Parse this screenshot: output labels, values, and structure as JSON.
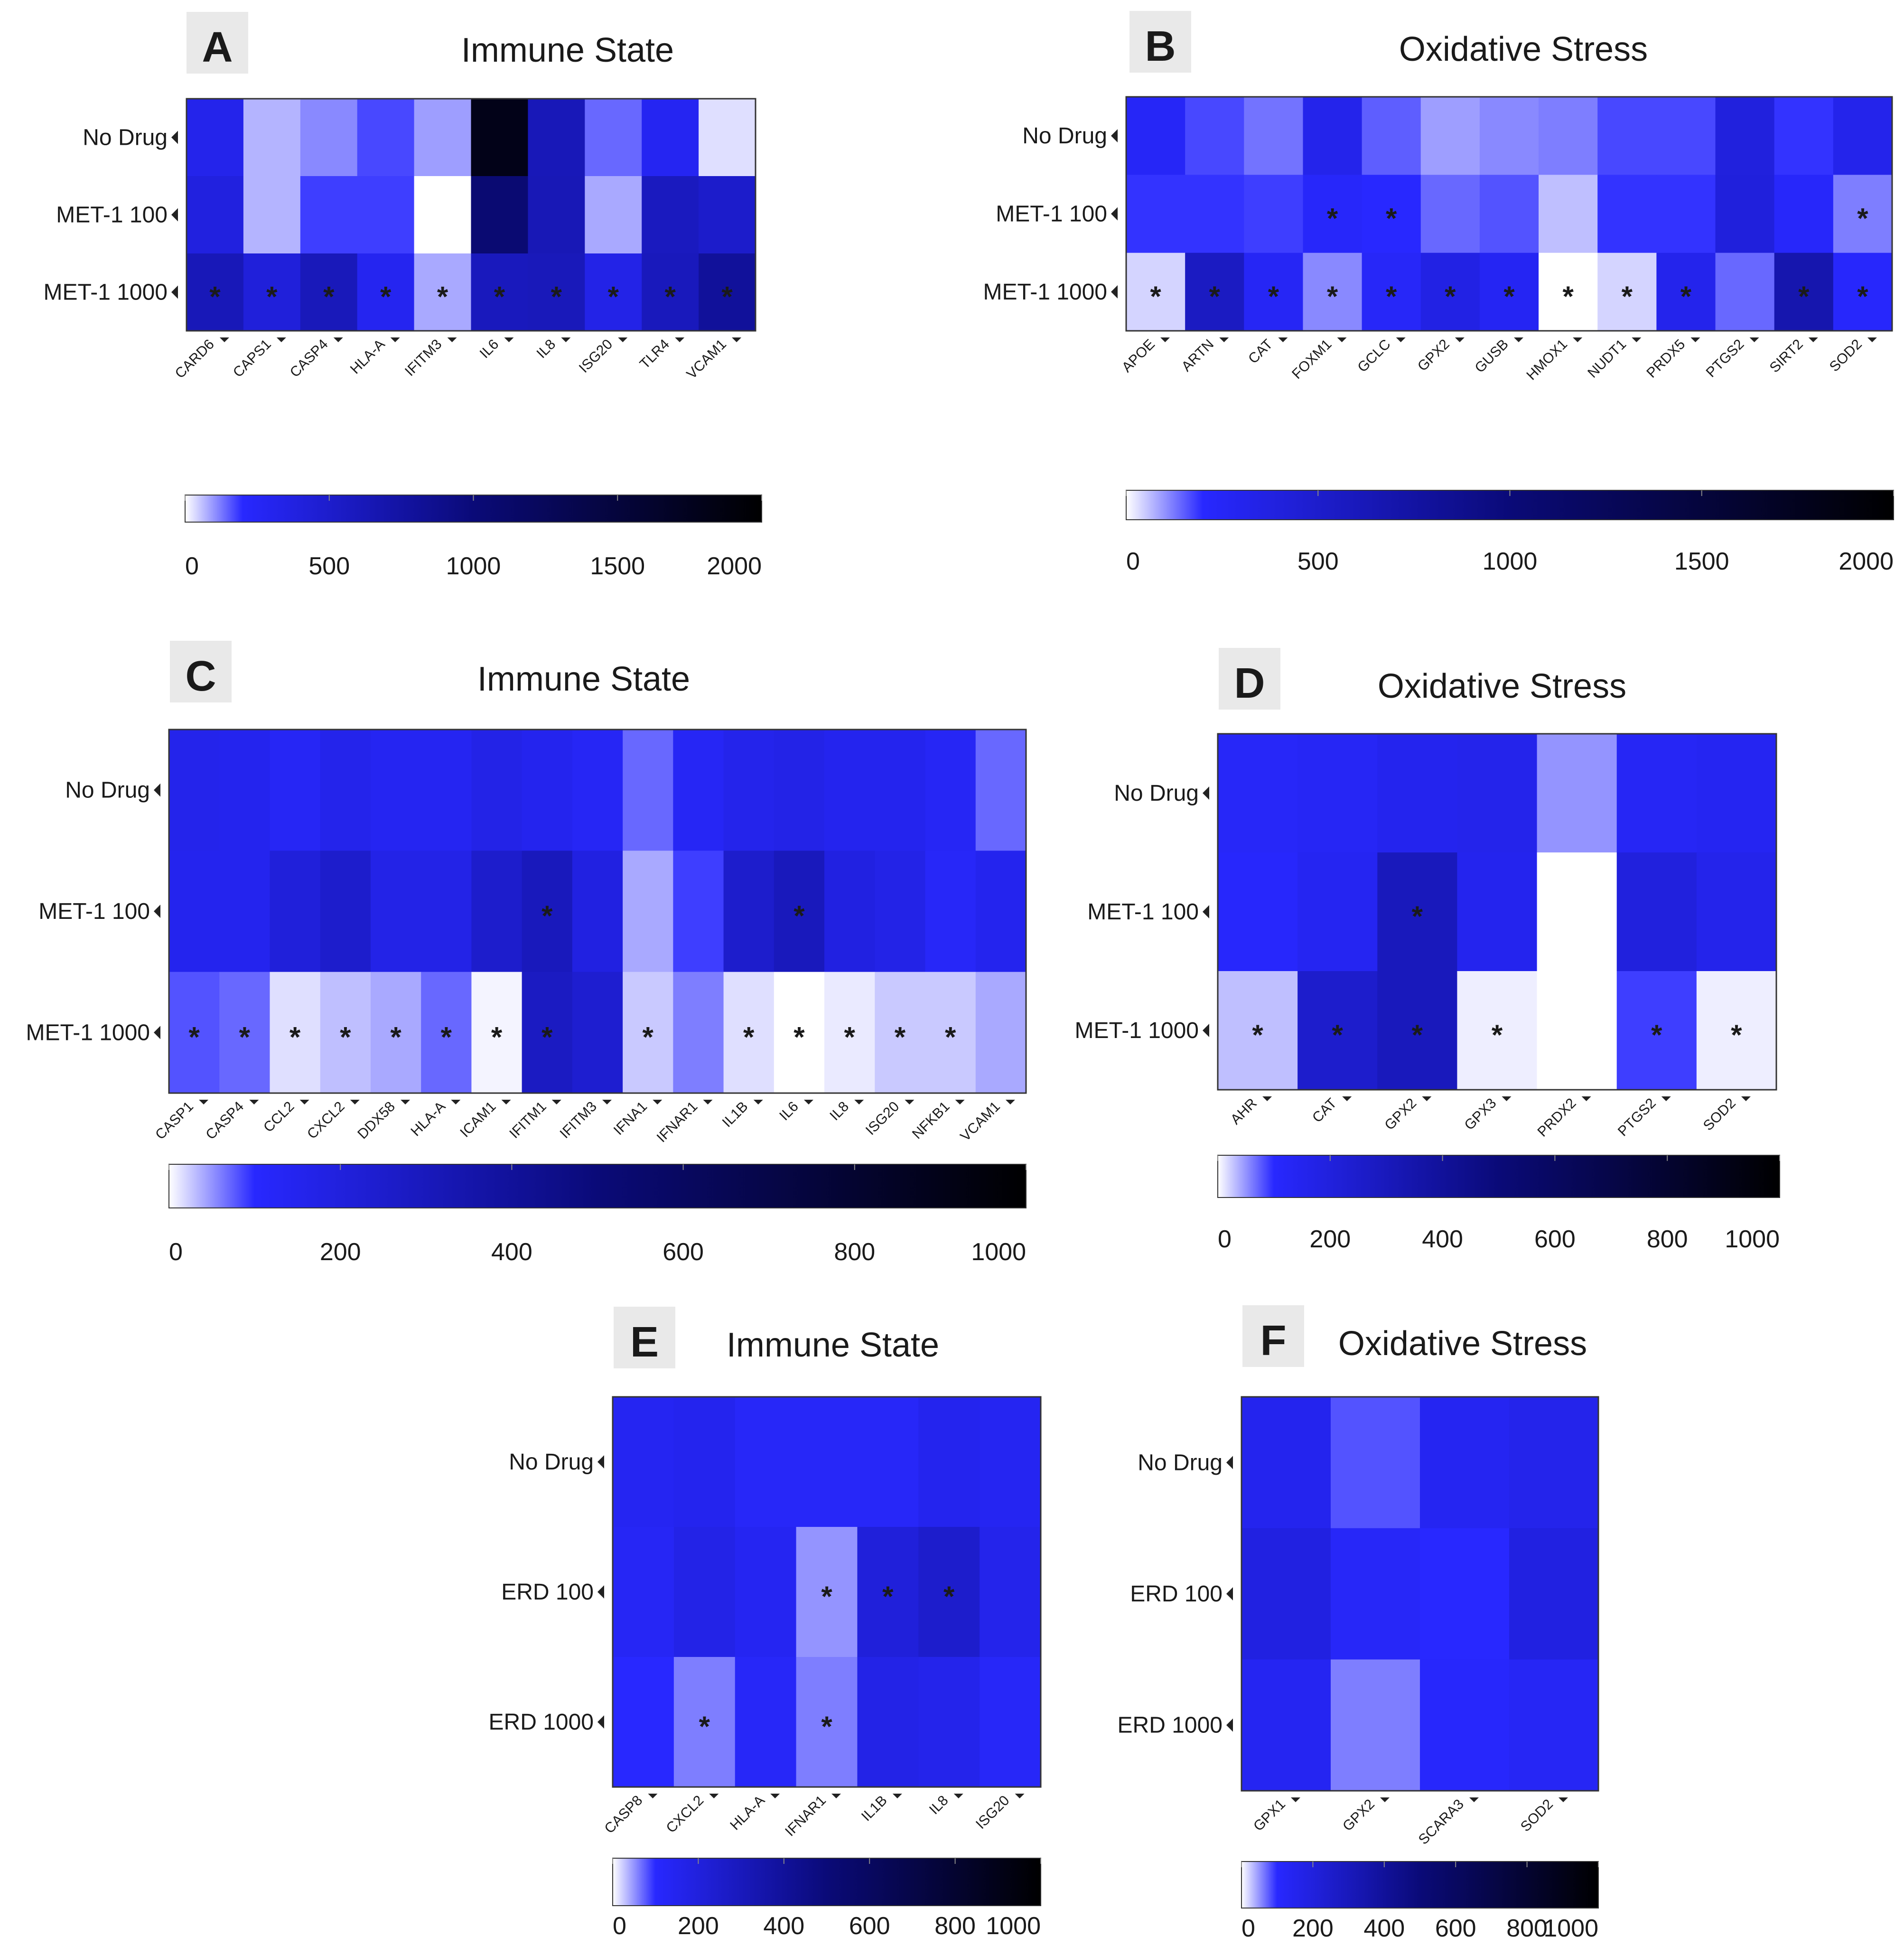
{
  "figure_title": "",
  "chart_data": [
    {
      "panel": "A",
      "type": "heatmap",
      "title": "Immune State",
      "rows": [
        "No Drug",
        "MET-1 100",
        "MET-1 1000"
      ],
      "columns": [
        "CARD6",
        "CAPS1",
        "CASP4",
        "HLA-A",
        "IFITM3",
        "IL6",
        "IL8",
        "ISG20",
        "TLR4",
        "VCAM1"
      ],
      "values": [
        [
          320,
          70,
          110,
          170,
          90,
          1800,
          620,
          140,
          280,
          30
        ],
        [
          390,
          70,
          180,
          180,
          0,
          1050,
          630,
          80,
          580,
          510
        ],
        [
          620,
          420,
          610,
          290,
          80,
          590,
          610,
          340,
          600,
          800
        ]
      ],
      "significant": [
        [
          false,
          false,
          false,
          false,
          false,
          false,
          false,
          false,
          false,
          false
        ],
        [
          false,
          false,
          false,
          false,
          false,
          false,
          false,
          false,
          false,
          false
        ],
        [
          true,
          true,
          true,
          true,
          true,
          true,
          true,
          true,
          true,
          true
        ]
      ],
      "colorbar": {
        "min": 0,
        "max": 2000,
        "ticks": [
          0,
          500,
          1000,
          1500,
          2000
        ]
      }
    },
    {
      "panel": "B",
      "type": "heatmap",
      "title": "Oxidative Stress",
      "rows": [
        "No Drug",
        "MET-1 100",
        "MET-1 1000"
      ],
      "columns": [
        "APOE",
        "ARTN",
        "CAT",
        "FOXM1",
        "GCLC",
        "GPX2",
        "GUSB",
        "HMOX1",
        "NUDT1",
        "PRDX5",
        "PTGS2",
        "SIRT2",
        "SOD2"
      ],
      "values": [
        [
          250,
          170,
          130,
          320,
          150,
          90,
          110,
          120,
          170,
          170,
          400,
          190,
          320
        ],
        [
          190,
          190,
          180,
          230,
          200,
          140,
          160,
          60,
          190,
          190,
          410,
          230,
          120
        ],
        [
          40,
          560,
          260,
          110,
          240,
          360,
          270,
          0,
          40,
          310,
          140,
          680,
          220
        ]
      ],
      "significant": [
        [
          false,
          false,
          false,
          false,
          false,
          false,
          false,
          false,
          false,
          false,
          false,
          false,
          false
        ],
        [
          false,
          false,
          false,
          true,
          true,
          false,
          false,
          false,
          false,
          false,
          false,
          false,
          true
        ],
        [
          true,
          true,
          true,
          true,
          true,
          true,
          true,
          true,
          true,
          true,
          false,
          true,
          true
        ]
      ],
      "colorbar": {
        "min": 0,
        "max": 2000,
        "ticks": [
          0,
          500,
          1000,
          1500,
          2000
        ]
      }
    },
    {
      "panel": "C",
      "type": "heatmap",
      "title": "Immune State",
      "rows": [
        "No Drug",
        "MET-1 100",
        "MET-1 1000"
      ],
      "columns": [
        "CASP1",
        "CASP4",
        "CCL2",
        "CXCL2",
        "DDX58",
        "HLA-A",
        "ICAM1",
        "IFITM1",
        "IFITM3",
        "IFNA1",
        "IFNAR1",
        "IL1B",
        "IL6",
        "IL8",
        "ISG20",
        "NFKB1",
        "VCAM1"
      ],
      "values": [
        [
          160,
          150,
          130,
          160,
          140,
          140,
          170,
          150,
          130,
          70,
          130,
          160,
          170,
          150,
          150,
          130,
          70
        ],
        [
          150,
          150,
          210,
          250,
          170,
          170,
          250,
          300,
          190,
          40,
          90,
          250,
          300,
          190,
          170,
          120,
          150
        ],
        [
          80,
          70,
          15,
          30,
          40,
          70,
          5,
          280,
          240,
          25,
          60,
          15,
          0,
          10,
          25,
          25,
          40
        ]
      ],
      "significant": [
        [
          false,
          false,
          false,
          false,
          false,
          false,
          false,
          false,
          false,
          false,
          false,
          false,
          false,
          false,
          false,
          false,
          false
        ],
        [
          false,
          false,
          false,
          false,
          false,
          false,
          false,
          true,
          false,
          false,
          false,
          false,
          true,
          false,
          false,
          false,
          false
        ],
        [
          true,
          true,
          true,
          true,
          true,
          true,
          true,
          true,
          false,
          true,
          false,
          true,
          true,
          true,
          true,
          true,
          false
        ]
      ],
      "colorbar": {
        "min": 0,
        "max": 1000,
        "ticks": [
          0,
          200,
          400,
          600,
          800,
          1000
        ]
      }
    },
    {
      "panel": "D",
      "type": "heatmap",
      "title": "Oxidative Stress",
      "rows": [
        "No Drug",
        "MET-1 100",
        "MET-1 1000"
      ],
      "columns": [
        "AHR",
        "CAT",
        "GPX2",
        "GPX3",
        "PRDX2",
        "PTGS2",
        "SOD2"
      ],
      "values": [
        [
          120,
          130,
          150,
          160,
          50,
          130,
          140
        ],
        [
          110,
          140,
          300,
          150,
          0,
          200,
          160
        ],
        [
          30,
          250,
          300,
          8,
          0,
          90,
          8
        ]
      ],
      "significant": [
        [
          false,
          false,
          false,
          false,
          false,
          false,
          false
        ],
        [
          false,
          false,
          true,
          false,
          false,
          false,
          false
        ],
        [
          true,
          true,
          true,
          true,
          false,
          true,
          true
        ]
      ],
      "colorbar": {
        "min": 0,
        "max": 1000,
        "ticks": [
          0,
          200,
          400,
          600,
          800,
          1000
        ]
      }
    },
    {
      "panel": "E",
      "type": "heatmap",
      "title": "Immune State",
      "rows": [
        "No Drug",
        "ERD 100",
        "ERD 1000"
      ],
      "columns": [
        "CASP8",
        "CXCL2",
        "HLA-A",
        "IFNAR1",
        "IL1B",
        "IL8",
        "ISG20"
      ],
      "values": [
        [
          140,
          150,
          120,
          120,
          120,
          150,
          140
        ],
        [
          130,
          170,
          140,
          50,
          210,
          250,
          160
        ],
        [
          100,
          60,
          120,
          60,
          170,
          160,
          120
        ]
      ],
      "significant": [
        [
          false,
          false,
          false,
          false,
          false,
          false,
          false
        ],
        [
          false,
          false,
          false,
          true,
          true,
          true,
          false
        ],
        [
          false,
          true,
          false,
          true,
          false,
          false,
          false
        ]
      ],
      "colorbar": {
        "min": 0,
        "max": 1000,
        "ticks": [
          0,
          200,
          400,
          600,
          800,
          1000
        ]
      }
    },
    {
      "panel": "F",
      "type": "heatmap",
      "title": "Oxidative Stress",
      "rows": [
        "No Drug",
        "ERD 100",
        "ERD 1000"
      ],
      "columns": [
        "GPX1",
        "GPX2",
        "SCARA3",
        "SOD2"
      ],
      "values": [
        [
          150,
          80,
          140,
          160
        ],
        [
          190,
          120,
          100,
          190
        ],
        [
          140,
          60,
          110,
          130
        ]
      ],
      "significant": [
        [
          false,
          false,
          false,
          false
        ],
        [
          false,
          false,
          false,
          false
        ],
        [
          false,
          false,
          false,
          false
        ]
      ],
      "colorbar": {
        "min": 0,
        "max": 1000,
        "ticks": [
          0,
          200,
          400,
          600,
          800,
          1000
        ]
      }
    }
  ]
}
